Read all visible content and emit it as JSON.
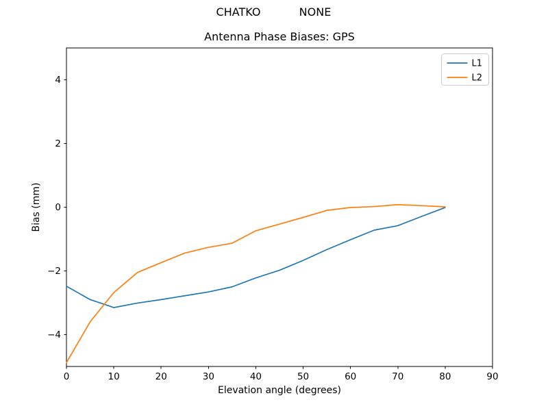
{
  "figure": {
    "background": "#ffffff",
    "suptitle_left": "CHATKO",
    "suptitle_right": "NONE"
  },
  "chart_data": {
    "type": "line",
    "title": "Antenna Phase Biases: GPS",
    "xlabel": "Elevation angle (degrees)",
    "ylabel": "Bias (mm)",
    "xlim": [
      0,
      90
    ],
    "ylim": [
      -5,
      5
    ],
    "x_ticks": [
      0,
      10,
      20,
      30,
      40,
      50,
      60,
      70,
      80,
      90
    ],
    "y_ticks": [
      -4,
      -2,
      0,
      2,
      4
    ],
    "grid": false,
    "axis_color": "#000000",
    "legend": {
      "position": "upper right",
      "border_color": "#cccccc",
      "background": "rgba(255,255,255,0.85)"
    },
    "x": [
      0,
      5,
      10,
      15,
      20,
      25,
      30,
      35,
      40,
      45,
      50,
      55,
      60,
      65,
      70,
      75,
      80
    ],
    "series": [
      {
        "name": "L1",
        "color": "#1f77b4",
        "values": [
          -2.48,
          -2.9,
          -3.15,
          -3.01,
          -2.9,
          -2.78,
          -2.66,
          -2.5,
          -2.22,
          -1.98,
          -1.67,
          -1.33,
          -1.02,
          -0.72,
          -0.58,
          -0.29,
          -0.01
        ]
      },
      {
        "name": "L2",
        "color": "#ff7f0e",
        "values": [
          -4.88,
          -3.6,
          -2.68,
          -2.05,
          -1.74,
          -1.44,
          -1.26,
          -1.13,
          -0.74,
          -0.53,
          -0.32,
          -0.1,
          -0.01,
          0.02,
          0.08,
          0.05,
          0.01
        ]
      }
    ]
  }
}
